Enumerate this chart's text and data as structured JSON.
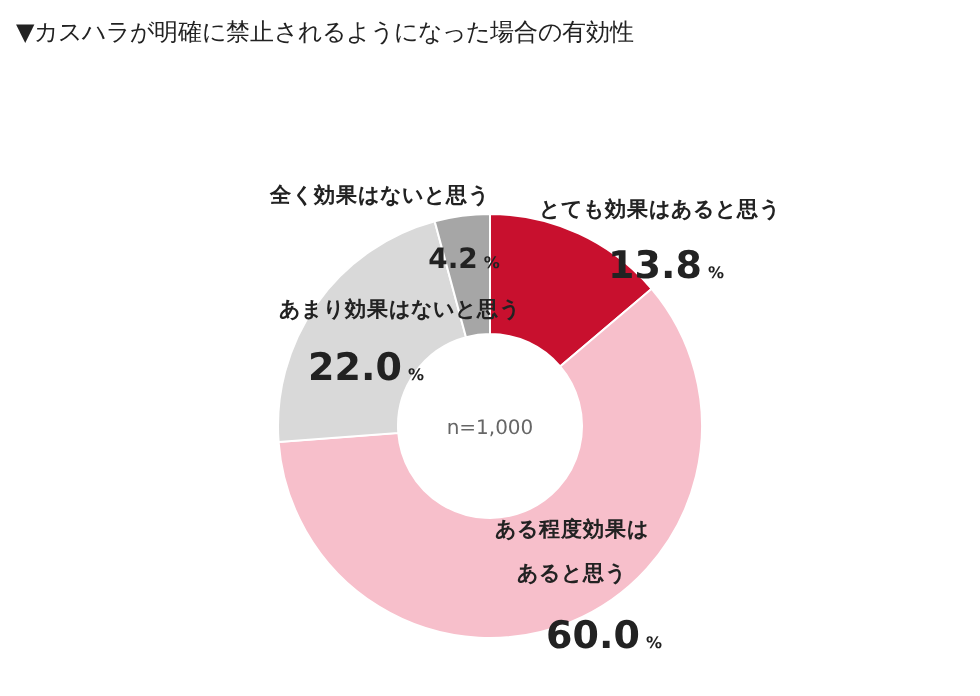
{
  "chart_data": {
    "type": "donut",
    "title": "▼カスハラが明確に禁止されるようになった場合の有効性",
    "categories": [
      "とても効果はあると思う",
      "ある程度効果はあると思う",
      "あまり効果はないと思う",
      "全く効果はないと思う"
    ],
    "values": [
      13.8,
      60.0,
      22.0,
      4.2
    ],
    "colors": [
      "#c8102e",
      "#f7bfcb",
      "#d9d9d9",
      "#a6a6a6"
    ],
    "value_labels": [
      "13.8%",
      "60.0%",
      "22.0%",
      "4.2%"
    ],
    "annotations": [
      "n=1,000"
    ]
  }
}
